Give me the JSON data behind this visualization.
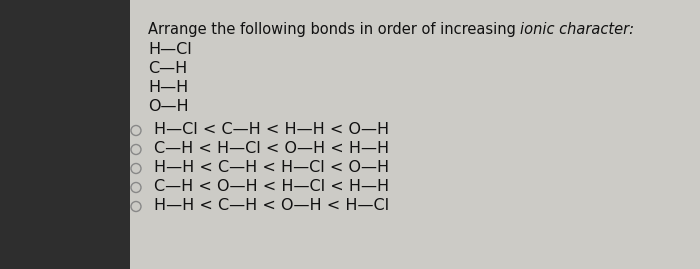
{
  "background_color": "#cccbc6",
  "left_bg": "#3a3a3a",
  "title_normal": "Arrange the following bonds in order of increasing ",
  "title_italic": "ionic character:",
  "bonds": [
    "H—Cl",
    "C—H",
    "H—H",
    "O—H"
  ],
  "options": [
    {
      "filled": false,
      "text": "H—Cl < C—H < H—H < O—H"
    },
    {
      "filled": false,
      "text": "C—H < H—Cl < O—H < H—H"
    },
    {
      "filled": false,
      "text": "H—H < C—H < H—Cl < O—H"
    },
    {
      "filled": false,
      "text": "C—H < O—H < H—Cl < H—H"
    },
    {
      "filled": false,
      "text": "H—H < C—H < O—H < H—Cl"
    }
  ],
  "font_size_title": 10.5,
  "font_size_bonds": 11.5,
  "font_size_options": 11.5,
  "text_color": "#111111",
  "bullet_outline_color": "#888888",
  "bullet_fill_color": "#555555"
}
